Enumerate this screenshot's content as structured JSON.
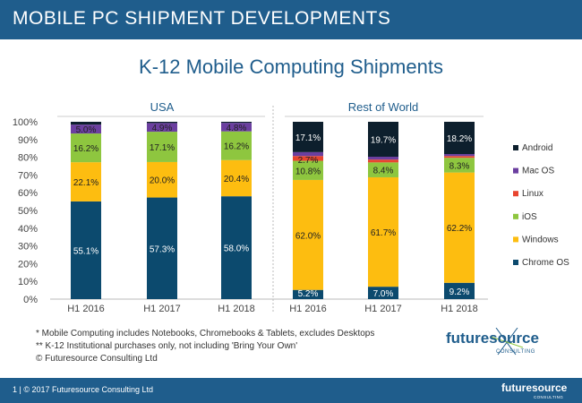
{
  "header": {
    "title": "MOBILE PC SHIPMENT DEVELOPMENTS"
  },
  "chart_data": {
    "type": "bar",
    "stacked": true,
    "title": "K-12 Mobile Computing Shipments",
    "ylim": [
      0,
      100
    ],
    "ytick_labels": [
      "0%",
      "10%",
      "20%",
      "30%",
      "40%",
      "50%",
      "60%",
      "70%",
      "80%",
      "90%",
      "100%"
    ],
    "groups": [
      {
        "name": "USA",
        "categories": [
          "H1 2016",
          "H1 2017",
          "H1 2018"
        ],
        "series": [
          {
            "name": "Chrome OS",
            "values": [
              55.1,
              57.3,
              58.0
            ],
            "labels": [
              "55.1%",
              "57.3%",
              "58.0%"
            ]
          },
          {
            "name": "Windows",
            "values": [
              22.1,
              20.0,
              20.4
            ],
            "labels": [
              "22.1%",
              "20.0%",
              "20.4%"
            ]
          },
          {
            "name": "iOS",
            "values": [
              16.2,
              17.1,
              16.2
            ],
            "labels": [
              "16.2%",
              "17.1%",
              "16.2%"
            ]
          },
          {
            "name": "Linux",
            "values": [
              0.0,
              0.0,
              0.0
            ],
            "labels": [
              "",
              "",
              ""
            ]
          },
          {
            "name": "Mac OS",
            "values": [
              5.0,
              4.9,
              4.8
            ],
            "labels": [
              "5.0%",
              "4.9%",
              "4.8%"
            ]
          },
          {
            "name": "Android",
            "values": [
              1.6,
              0.7,
              0.6
            ],
            "labels": [
              "",
              "",
              ""
            ]
          }
        ]
      },
      {
        "name": "Rest of World",
        "categories": [
          "H1 2016",
          "H1 2017",
          "H1 2018"
        ],
        "series": [
          {
            "name": "Chrome OS",
            "values": [
              5.2,
              7.0,
              9.2
            ],
            "labels": [
              "5.2%",
              "7.0%",
              "9.2%"
            ]
          },
          {
            "name": "Windows",
            "values": [
              62.0,
              61.7,
              62.2
            ],
            "labels": [
              "62.0%",
              "61.7%",
              "62.2%"
            ]
          },
          {
            "name": "iOS",
            "values": [
              10.8,
              8.4,
              8.3
            ],
            "labels": [
              "10.8%",
              "8.4%",
              "8.3%"
            ]
          },
          {
            "name": "Linux",
            "values": [
              2.7,
              1.6,
              1.0
            ],
            "labels": [
              "2.7%",
              "",
              ""
            ]
          },
          {
            "name": "Mac OS",
            "values": [
              2.2,
              1.6,
              1.1
            ],
            "labels": [
              "",
              "",
              ""
            ]
          },
          {
            "name": "Android",
            "values": [
              17.1,
              19.7,
              18.2
            ],
            "labels": [
              "17.1%",
              "19.7%",
              "18.2%"
            ]
          }
        ]
      }
    ],
    "legend": {
      "placement": "right",
      "order": [
        "Android",
        "Mac OS",
        "Linux",
        "iOS",
        "Windows",
        "Chrome OS"
      ]
    },
    "colors": {
      "Chrome OS": "#0c4a6e",
      "Windows": "#fdbd10",
      "iOS": "#8ec63f",
      "Linux": "#e8452f",
      "Mac OS": "#6b3fa0",
      "Android": "#0d1f2d"
    }
  },
  "footnotes": [
    "* Mobile Computing includes Notebooks, Chromebooks & Tablets, excludes Desktops",
    "** K-12 Institutional purchases only, not including 'Bring Your Own'",
    "© Futuresource Consulting Ltd"
  ],
  "logo": {
    "word": "futuresource",
    "sub": "CONSULTING"
  },
  "footer": {
    "text": "1  |  © 2017 Futuresource Consulting Ltd"
  },
  "colors": {
    "brand": "#1f5d8c"
  }
}
